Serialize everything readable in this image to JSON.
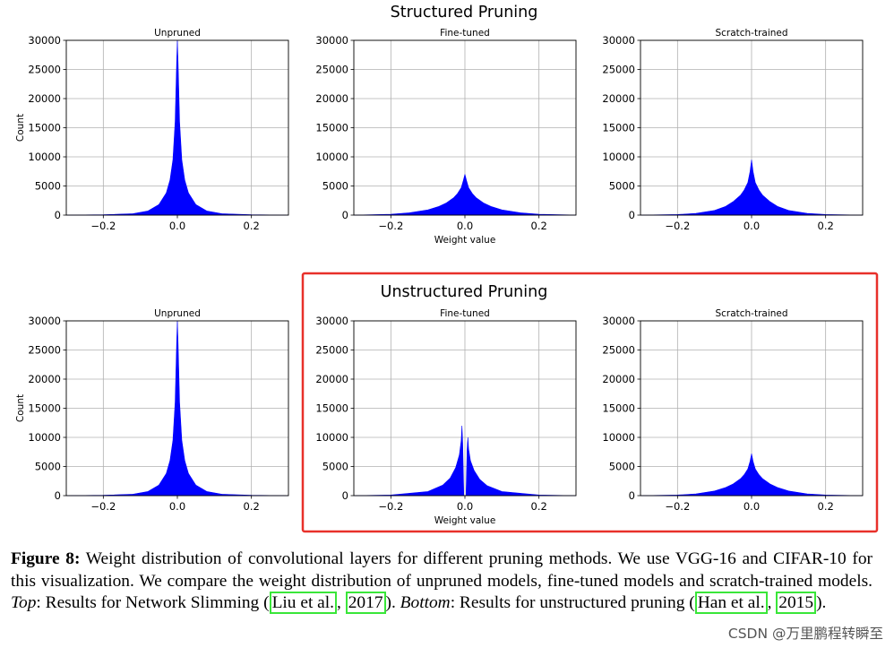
{
  "chart_data": [
    {
      "type": "area",
      "group": "Structured Pruning",
      "title": "Unpruned",
      "xlabel": "",
      "ylabel": "Count",
      "xlim": [
        -0.3,
        0.3
      ],
      "ylim": [
        0,
        30000
      ],
      "xticks": [
        -0.2,
        0.0,
        0.2
      ],
      "yticks": [
        0,
        5000,
        10000,
        15000,
        20000,
        25000,
        30000
      ],
      "grid": true,
      "x": [
        -0.3,
        -0.2,
        -0.12,
        -0.08,
        -0.05,
        -0.03,
        -0.02,
        -0.012,
        -0.006,
        -0.002,
        0.0,
        0.002,
        0.006,
        0.012,
        0.02,
        0.03,
        0.05,
        0.08,
        0.12,
        0.2,
        0.3
      ],
      "values": [
        0,
        60,
        250,
        700,
        1800,
        3800,
        6000,
        9500,
        16000,
        26000,
        30000,
        26000,
        16000,
        9500,
        6000,
        3800,
        1800,
        700,
        250,
        60,
        0
      ]
    },
    {
      "type": "area",
      "group": "Structured Pruning",
      "title": "Fine-tuned",
      "xlabel": "Weight value",
      "ylabel": "",
      "xlim": [
        -0.3,
        0.3
      ],
      "ylim": [
        0,
        30000
      ],
      "xticks": [
        -0.2,
        0.0,
        0.2
      ],
      "yticks": [
        0,
        5000,
        10000,
        15000,
        20000,
        25000,
        30000
      ],
      "grid": true,
      "x": [
        -0.3,
        -0.2,
        -0.15,
        -0.1,
        -0.07,
        -0.05,
        -0.03,
        -0.02,
        -0.01,
        -0.004,
        0.0,
        0.004,
        0.01,
        0.02,
        0.03,
        0.05,
        0.07,
        0.1,
        0.15,
        0.2,
        0.3
      ],
      "values": [
        0,
        150,
        400,
        900,
        1500,
        2100,
        3000,
        3700,
        4700,
        6000,
        7000,
        6000,
        4700,
        3700,
        3000,
        2100,
        1500,
        900,
        400,
        150,
        0
      ]
    },
    {
      "type": "area",
      "group": "Structured Pruning",
      "title": "Scratch-trained",
      "xlabel": "",
      "ylabel": "",
      "xlim": [
        -0.3,
        0.3
      ],
      "ylim": [
        0,
        30000
      ],
      "xticks": [
        -0.2,
        0.0,
        0.2
      ],
      "yticks": [
        0,
        5000,
        10000,
        15000,
        20000,
        25000,
        30000
      ],
      "grid": true,
      "x": [
        -0.3,
        -0.2,
        -0.15,
        -0.1,
        -0.07,
        -0.05,
        -0.03,
        -0.02,
        -0.01,
        -0.004,
        0.0,
        0.004,
        0.01,
        0.02,
        0.03,
        0.05,
        0.07,
        0.1,
        0.15,
        0.2,
        0.3
      ],
      "values": [
        0,
        100,
        300,
        800,
        1500,
        2300,
        3400,
        4300,
        5600,
        7500,
        9500,
        7500,
        5600,
        4300,
        3400,
        2300,
        1500,
        800,
        300,
        100,
        0
      ]
    },
    {
      "type": "area",
      "group": "Unstructured Pruning",
      "title": "Unpruned",
      "xlabel": "",
      "ylabel": "Count",
      "xlim": [
        -0.3,
        0.3
      ],
      "ylim": [
        0,
        30000
      ],
      "xticks": [
        -0.2,
        0.0,
        0.2
      ],
      "yticks": [
        0,
        5000,
        10000,
        15000,
        20000,
        25000,
        30000
      ],
      "grid": true,
      "x": [
        -0.3,
        -0.2,
        -0.12,
        -0.08,
        -0.05,
        -0.03,
        -0.02,
        -0.012,
        -0.006,
        -0.002,
        0.0,
        0.002,
        0.006,
        0.012,
        0.02,
        0.03,
        0.05,
        0.08,
        0.12,
        0.2,
        0.3
      ],
      "values": [
        0,
        60,
        250,
        700,
        1800,
        3800,
        6000,
        9500,
        16000,
        26000,
        30000,
        26000,
        16000,
        9500,
        6000,
        3800,
        1800,
        700,
        250,
        60,
        0
      ]
    },
    {
      "type": "area",
      "group": "Unstructured Pruning",
      "title": "Fine-tuned",
      "xlabel": "Weight value",
      "ylabel": "",
      "xlim": [
        -0.3,
        0.3
      ],
      "ylim": [
        0,
        30000
      ],
      "xticks": [
        -0.2,
        0.0,
        0.2
      ],
      "yticks": [
        0,
        5000,
        10000,
        15000,
        20000,
        25000,
        30000
      ],
      "grid": true,
      "x": [
        -0.3,
        -0.2,
        -0.1,
        -0.06,
        -0.04,
        -0.025,
        -0.015,
        -0.01,
        -0.008,
        -0.006,
        -0.003,
        0.003,
        0.006,
        0.008,
        0.01,
        0.015,
        0.025,
        0.04,
        0.06,
        0.1,
        0.2,
        0.3
      ],
      "values": [
        0,
        100,
        700,
        1800,
        3000,
        4800,
        7000,
        9500,
        12000,
        9000,
        0,
        0,
        8000,
        10000,
        8000,
        6000,
        4300,
        2800,
        1700,
        700,
        100,
        0
      ]
    },
    {
      "type": "area",
      "group": "Unstructured Pruning",
      "title": "Scratch-trained",
      "xlabel": "",
      "ylabel": "",
      "xlim": [
        -0.3,
        0.3
      ],
      "ylim": [
        0,
        30000
      ],
      "xticks": [
        -0.2,
        0.0,
        0.2
      ],
      "yticks": [
        0,
        5000,
        10000,
        15000,
        20000,
        25000,
        30000
      ],
      "grid": true,
      "x": [
        -0.3,
        -0.2,
        -0.15,
        -0.1,
        -0.07,
        -0.05,
        -0.03,
        -0.02,
        -0.01,
        -0.004,
        0.0,
        0.004,
        0.01,
        0.02,
        0.03,
        0.05,
        0.07,
        0.1,
        0.15,
        0.2,
        0.3
      ],
      "values": [
        0,
        100,
        300,
        800,
        1400,
        2000,
        2900,
        3600,
        4600,
        5900,
        7200,
        5900,
        4600,
        3600,
        2900,
        2000,
        1400,
        800,
        300,
        100,
        0
      ]
    }
  ],
  "group_titles": [
    "Structured Pruning",
    "Unstructured Pruning"
  ],
  "colors": {
    "fill": "#0000ff",
    "grid": "#b0b0b0",
    "highlight_box": "#e8302a",
    "citation_box": "#39e639"
  },
  "caption": {
    "label": "Figure 8:",
    "text1": " Weight distribution of convolutional layers for different pruning methods.  We use VGG-16 and CIFAR-10 for this visualization.  We compare the weight distribution of unpruned models, fine-tuned models and scratch-trained models. ",
    "top_label": "Top",
    "text2": ": Results for Network Slimming (",
    "cite1_author": "Liu et al.",
    "sep1": ", ",
    "cite1_year": "2017",
    "text3": "). ",
    "bottom_label": "Bottom",
    "text4": ": Results for unstructured pruning (",
    "cite2_author": "Han et al.",
    "sep2": ", ",
    "cite2_year": "2015",
    "text5": ")."
  },
  "watermark": "CSDN @万里鹏程转瞬至"
}
